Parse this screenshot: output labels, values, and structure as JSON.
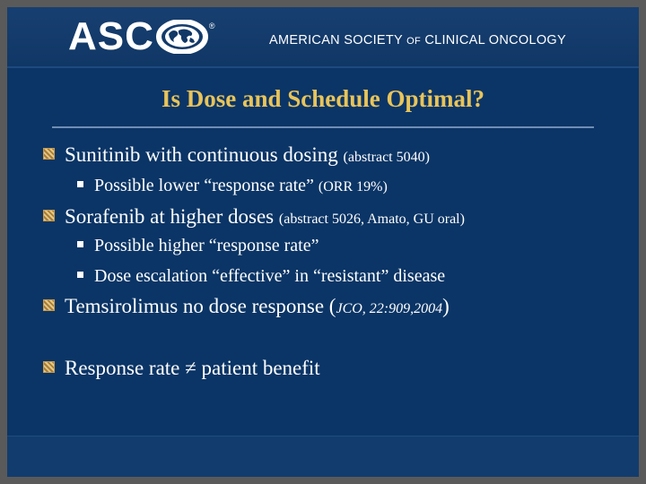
{
  "header": {
    "logo_text": "ASC",
    "logo_registered": "®",
    "org_name_part1": "AMERICAN SOCIETY ",
    "org_name_of": "OF",
    "org_name_part2": " CLINICAL ONCOLOGY"
  },
  "slide": {
    "title": "Is Dose and Schedule Optimal?",
    "bullets": [
      {
        "text": "Sunitinib with continuous dosing ",
        "note": "(abstract 5040)"
      },
      {
        "text": "Possible lower “response rate” ",
        "note": "(ORR 19%)"
      },
      {
        "text": "Sorafenib at higher doses ",
        "note": "(abstract 5026, Amato, GU oral)"
      },
      {
        "text": "Possible higher “response rate”"
      },
      {
        "text": "Dose escalation “effective” in “resistant” disease"
      },
      {
        "text": "Temsirolimus no dose response (",
        "note": "JCO, 22:909,2004",
        "after": ")"
      },
      {
        "text": "Response rate ≠ patient benefit"
      }
    ]
  },
  "colors": {
    "background": "#0b3566",
    "title": "#e8c45a",
    "bullet_box": "#c79a4d"
  }
}
